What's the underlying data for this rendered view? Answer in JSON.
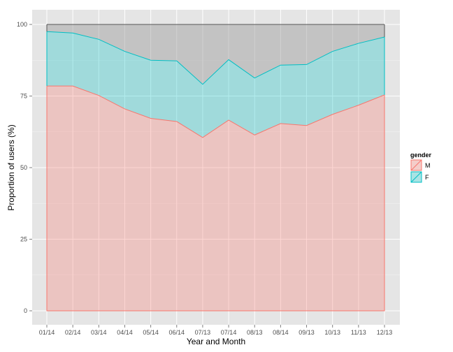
{
  "chart_data": {
    "type": "area",
    "stacked": true,
    "xlabel": "Year and Month",
    "ylabel": "Proportion of users (%)",
    "ylim": [
      0,
      100
    ],
    "yticks": [
      0,
      25,
      50,
      75,
      100
    ],
    "grid": true,
    "legend": {
      "title": "gender",
      "position": "right"
    },
    "categories": [
      "01/14",
      "02/14",
      "03/14",
      "04/14",
      "05/14",
      "06/14",
      "07/13",
      "07/14",
      "08/13",
      "08/14",
      "09/13",
      "10/13",
      "11/13",
      "12/13"
    ],
    "series": [
      {
        "name": "M",
        "color": "#F8766D",
        "values": [
          78.5,
          78.5,
          75.2,
          70.5,
          67.2,
          66.1,
          60.5,
          66.6,
          61.4,
          65.4,
          64.7,
          68.6,
          71.8,
          75.4
        ]
      },
      {
        "name": "F",
        "color": "#00BFC4",
        "values": [
          19.0,
          18.5,
          19.6,
          20.1,
          20.3,
          21.2,
          18.6,
          21.1,
          19.9,
          20.4,
          21.3,
          22.0,
          21.6,
          20.2
        ]
      }
    ],
    "remainder": {
      "color": "#999999",
      "total": 100
    }
  }
}
